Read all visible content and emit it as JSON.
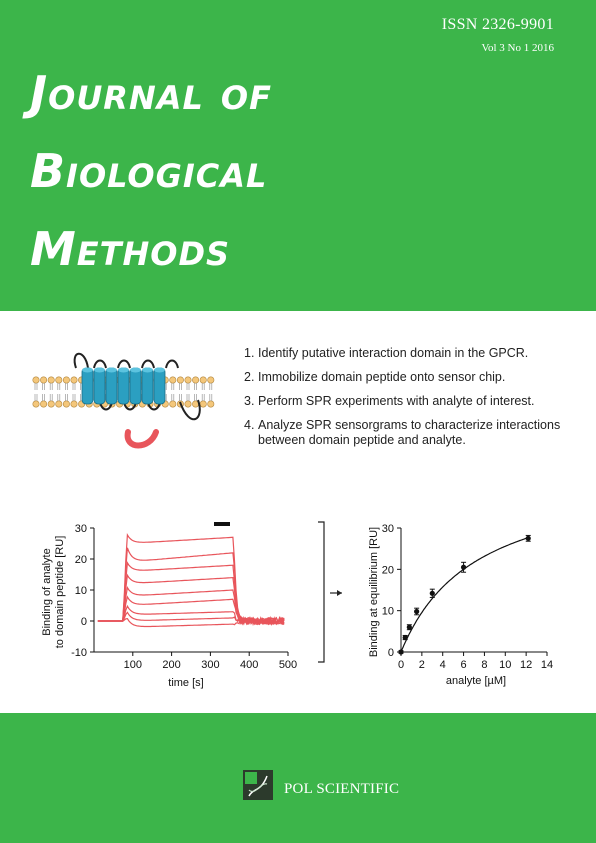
{
  "journal": {
    "issn": "ISSN 2326-9901",
    "volume_issue": "Vol 3  No 1  2016",
    "title_lines": [
      "Journal of",
      "Biological",
      "Methods"
    ]
  },
  "steps": [
    {
      "num": "1.",
      "text": "Identify putative interaction domain in the GPCR."
    },
    {
      "num": "2.",
      "text": "Immobilize domain peptide onto sensor chip."
    },
    {
      "num": "3.",
      "text": "Perform SPR experiments with analyte of interest."
    },
    {
      "num": "4.",
      "text": "Analyze SPR sensorgrams to characterize interactions between domain peptide and analyte."
    }
  ],
  "chart_data": [
    {
      "type": "line",
      "xlabel": "time [s]",
      "ylabel_lines": [
        "Binding of analyte",
        "to domain peptide [RU]"
      ],
      "xlim": [
        0,
        500
      ],
      "ylim": [
        -10,
        30
      ],
      "xticks": [
        "100",
        "200",
        "300",
        "400",
        "500"
      ],
      "yticks": [
        "-10",
        "0",
        "10",
        "20",
        "30"
      ],
      "color": "#e8555b",
      "curves": [
        {
          "peak": 28,
          "plateau": 25,
          "end": 27
        },
        {
          "peak": 24,
          "plateau": 19,
          "end": 22
        },
        {
          "peak": 19,
          "plateau": 16,
          "end": 18
        },
        {
          "peak": 15,
          "plateau": 12,
          "end": 14
        },
        {
          "peak": 11,
          "plateau": 8,
          "end": 10
        },
        {
          "peak": 8,
          "plateau": 5,
          "end": 7
        },
        {
          "peak": 5,
          "plateau": 2,
          "end": 3
        },
        {
          "peak": 3,
          "plateau": 0,
          "end": 1
        },
        {
          "peak": 1,
          "plateau": -2,
          "end": -1
        }
      ]
    },
    {
      "type": "scatter",
      "xlabel": "analyte [µM]",
      "ylabel": "Binding at equilibrium [RU]",
      "xlim": [
        0,
        14
      ],
      "ylim": [
        0,
        30
      ],
      "xticks": [
        "0",
        "2",
        "4",
        "6",
        "8",
        "10",
        "12",
        "14"
      ],
      "yticks": [
        "0",
        "10",
        "20",
        "30"
      ],
      "x": [
        0,
        0.4,
        0.8,
        1.5,
        3,
        6,
        12.2
      ],
      "y": [
        0,
        3.5,
        6,
        9.8,
        14.2,
        20.5,
        27.5
      ],
      "err": [
        0.3,
        0.5,
        0.6,
        0.8,
        1.0,
        1.2,
        0.7
      ]
    }
  ],
  "publisher": {
    "name": "POL SCIENTIFIC"
  }
}
